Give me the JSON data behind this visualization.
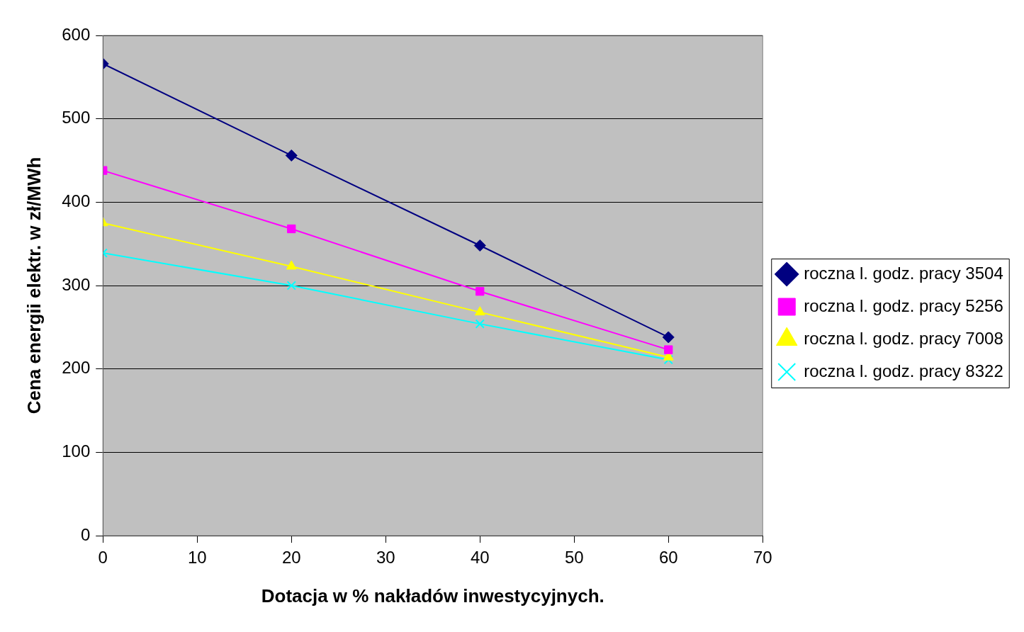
{
  "chart_data": {
    "type": "line",
    "xlabel": "Dotacja w % nakładów inwestycyjnych.",
    "ylabel": "Cena energii elektr. w zł/MWh",
    "x": [
      0,
      20,
      40,
      60
    ],
    "series": [
      {
        "name": "roczna l. godz. pracy 3504",
        "color": "#000080",
        "marker": "diamond",
        "values": [
          566,
          456,
          348,
          238
        ]
      },
      {
        "name": "roczna l. godz. pracy 5256",
        "color": "#ff00ff",
        "marker": "square",
        "values": [
          438,
          368,
          293,
          223
        ]
      },
      {
        "name": "roczna l. godz. pracy 7008",
        "color": "#ffff00",
        "marker": "triangle",
        "values": [
          375,
          323,
          268,
          214
        ]
      },
      {
        "name": "roczna l. godz. pracy 8322",
        "color": "#00ffff",
        "marker": "cross",
        "values": [
          339,
          300,
          254,
          211
        ]
      }
    ],
    "xlim": [
      0,
      70
    ],
    "xticks": [
      0,
      10,
      20,
      30,
      40,
      50,
      60,
      70
    ],
    "ylim": [
      0,
      600
    ],
    "yticks": [
      0,
      100,
      200,
      300,
      400,
      500,
      600
    ],
    "grid": "y",
    "legend": "right",
    "line_style": "solid"
  }
}
